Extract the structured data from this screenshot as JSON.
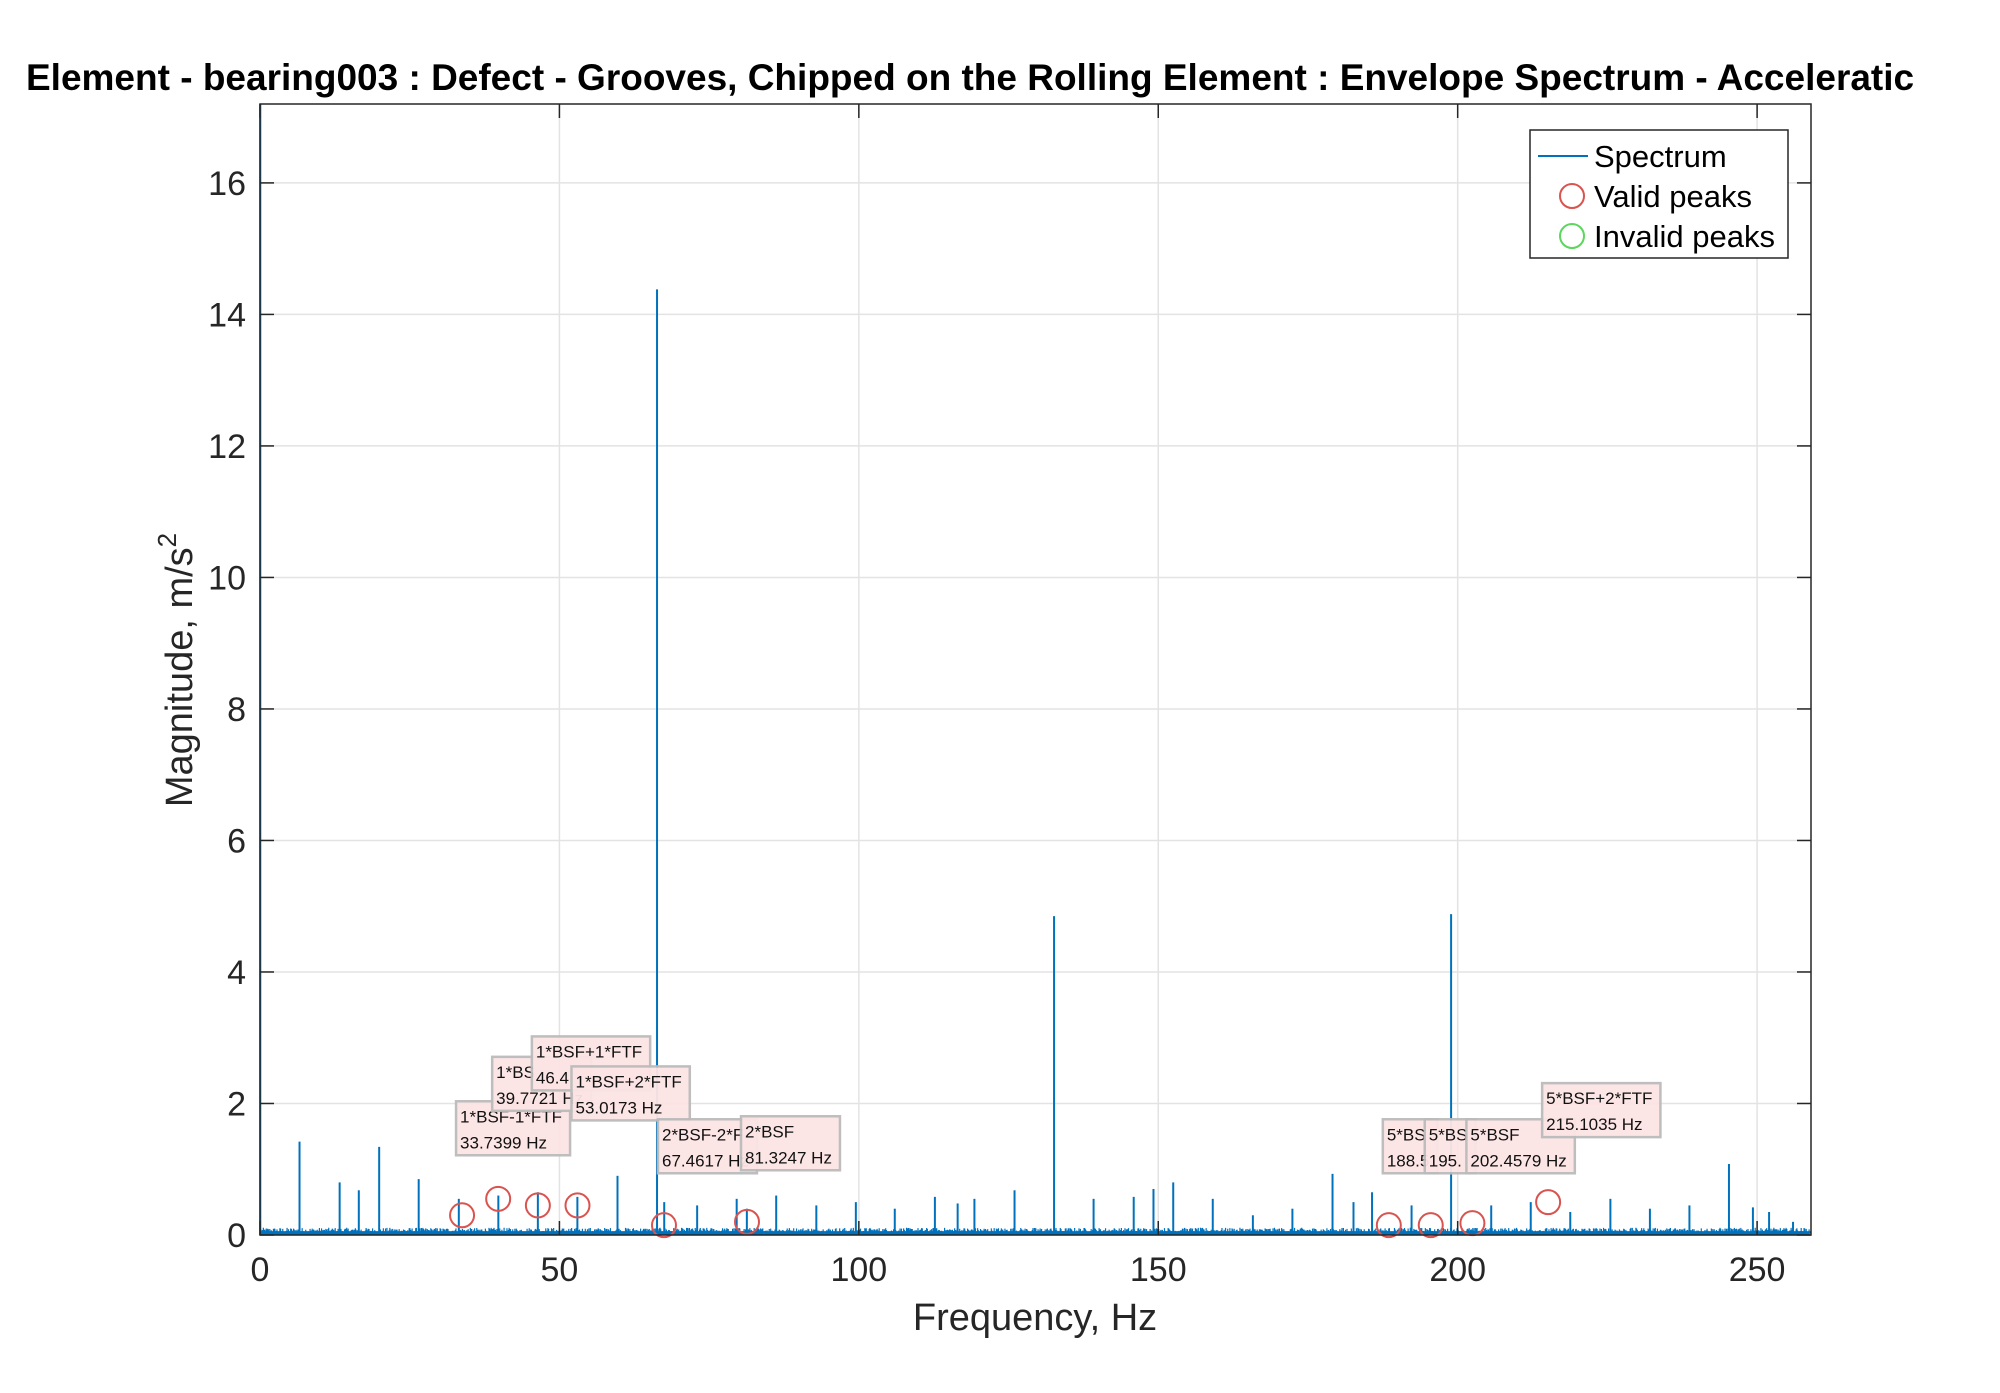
{
  "chart_data": {
    "type": "line",
    "title": "Element - bearing003 : Defect - Grooves, Chipped on the Rolling Element : Envelope Spectrum - Acceleratic",
    "xlabel": "Frequency, Hz",
    "ylabel": "Magnitude, m/s",
    "ylabel_superscript": "2",
    "xlim": [
      0,
      259
    ],
    "ylim": [
      0,
      17.2
    ],
    "xticks": [
      0,
      50,
      100,
      150,
      200,
      250
    ],
    "yticks": [
      0,
      2,
      4,
      6,
      8,
      10,
      12,
      14,
      16
    ],
    "grid": true,
    "legend_position": "top-right",
    "colors": {
      "spectrum": "#0072bd",
      "valid_peak": "#d9534f",
      "invalid_peak": "#5cd65c",
      "annotation_bg": "#fce4e4",
      "annotation_border": "#bbbbbb",
      "grid": "#e3e3e3"
    },
    "legend": {
      "spectrum": "Spectrum",
      "valid": "Valid peaks",
      "invalid": "Invalid peaks"
    },
    "series": [
      {
        "name": "Spectrum",
        "points": [
          [
            0.05,
            17.2
          ],
          [
            6.6,
            1.42
          ],
          [
            13.3,
            0.8
          ],
          [
            16.5,
            0.68
          ],
          [
            19.9,
            1.34
          ],
          [
            26.5,
            0.85
          ],
          [
            33.2,
            0.55
          ],
          [
            39.8,
            0.6
          ],
          [
            46.4,
            0.65
          ],
          [
            53.0,
            0.58
          ],
          [
            59.7,
            0.9
          ],
          [
            66.3,
            14.38
          ],
          [
            67.5,
            0.5
          ],
          [
            73.0,
            0.45
          ],
          [
            79.6,
            0.55
          ],
          [
            81.3,
            0.4
          ],
          [
            86.2,
            0.6
          ],
          [
            92.9,
            0.45
          ],
          [
            99.5,
            0.5
          ],
          [
            106.0,
            0.4
          ],
          [
            112.7,
            0.58
          ],
          [
            116.5,
            0.48
          ],
          [
            119.3,
            0.55
          ],
          [
            126.0,
            0.68
          ],
          [
            132.6,
            4.85
          ],
          [
            139.2,
            0.55
          ],
          [
            145.9,
            0.58
          ],
          [
            149.2,
            0.7
          ],
          [
            152.5,
            0.8
          ],
          [
            159.1,
            0.55
          ],
          [
            165.8,
            0.3
          ],
          [
            172.4,
            0.4
          ],
          [
            179.1,
            0.93
          ],
          [
            182.6,
            0.5
          ],
          [
            185.7,
            0.65
          ],
          [
            192.3,
            0.45
          ],
          [
            198.9,
            4.88
          ],
          [
            205.6,
            0.45
          ],
          [
            212.2,
            0.5
          ],
          [
            218.8,
            0.35
          ],
          [
            225.5,
            0.55
          ],
          [
            232.1,
            0.4
          ],
          [
            238.7,
            0.45
          ],
          [
            245.3,
            1.08
          ],
          [
            249.3,
            0.42
          ],
          [
            252.0,
            0.35
          ],
          [
            256.0,
            0.2
          ]
        ]
      }
    ],
    "valid_peaks": [
      {
        "freq": 33.7399,
        "mag": 0.3,
        "label_top": "1*BSF-1*FTF",
        "label_bottom": "33.7399 Hz"
      },
      {
        "freq": 39.7721,
        "mag": 0.55,
        "label_top": "1*BS",
        "label_bottom": "39.7721 Hz"
      },
      {
        "freq": 46.4,
        "mag": 0.45,
        "label_top": "1*BSF+1*FTF",
        "label_bottom": "46.4"
      },
      {
        "freq": 53.0173,
        "mag": 0.45,
        "label_top": "1*BSF+2*FTF",
        "label_bottom": "53.0173 Hz"
      },
      {
        "freq": 67.4617,
        "mag": 0.15,
        "label_top": "2*BSF-2*F",
        "label_bottom": "67.4617 Hz"
      },
      {
        "freq": 81.3247,
        "mag": 0.2,
        "label_top": "2*BSF",
        "label_bottom": "81.3247 Hz"
      },
      {
        "freq": 188.5,
        "mag": 0.15,
        "label_top": "5*BS",
        "label_bottom": "188.5"
      },
      {
        "freq": 195.5,
        "mag": 0.15,
        "label_top": "5*BS",
        "label_bottom": "195."
      },
      {
        "freq": 202.4579,
        "mag": 0.18,
        "label_top": "5*BSF",
        "label_bottom": "202.4579 Hz"
      },
      {
        "freq": 215.1035,
        "mag": 0.5,
        "label_top": "5*BSF+2*FTF",
        "label_bottom": "215.1035 Hz"
      }
    ]
  }
}
